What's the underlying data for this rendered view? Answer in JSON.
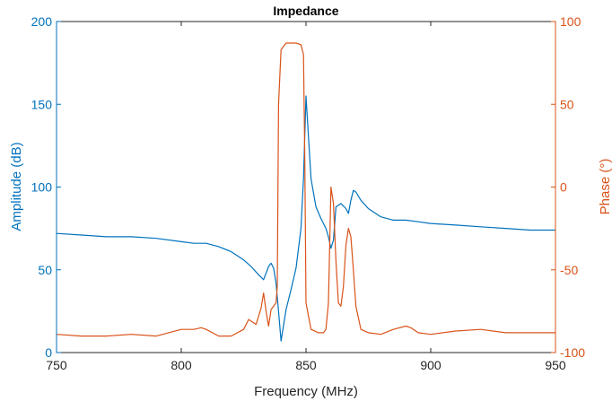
{
  "chart_data": {
    "type": "line",
    "title": "Impedance",
    "xlabel": "Frequency (MHz)",
    "ylabel_left": "Amplitude (dB)",
    "ylabel_right": "Phase (°)",
    "xlim": [
      750,
      950
    ],
    "ylim_left": [
      0,
      200
    ],
    "ylim_right": [
      -100,
      100
    ],
    "x_ticks": [
      "750",
      "800",
      "850",
      "900",
      "950"
    ],
    "y_ticks_left": [
      "0",
      "50",
      "100",
      "150",
      "200"
    ],
    "y_ticks_right": [
      "-100",
      "-50",
      "0",
      "50",
      "100"
    ],
    "grid": false,
    "colors": {
      "amplitude": "#0072BD",
      "phase": "#D95319"
    },
    "series": [
      {
        "axis": "left",
        "color": "#0072BD",
        "x": [
          750,
          760,
          770,
          780,
          790,
          800,
          805,
          810,
          815,
          820,
          825,
          828,
          831,
          833,
          835,
          836,
          837,
          838,
          839,
          840,
          842,
          844,
          846,
          848,
          849,
          850,
          852,
          854,
          856,
          858,
          859,
          860,
          861,
          862,
          864,
          866,
          867,
          868,
          869,
          870,
          872,
          875,
          880,
          885,
          890,
          895,
          900,
          910,
          920,
          930,
          940,
          950
        ],
        "y": [
          72,
          71,
          70,
          70,
          69,
          67,
          66,
          66,
          64,
          61,
          56,
          52,
          47,
          44,
          52,
          54,
          51,
          42,
          25,
          7,
          26,
          38,
          51,
          75,
          105,
          155,
          105,
          88,
          81,
          75,
          70,
          63,
          68,
          88,
          90,
          87,
          84,
          92,
          98,
          97,
          92,
          87,
          82,
          80,
          80,
          79,
          78,
          77,
          76,
          75,
          74,
          74
        ]
      },
      {
        "axis": "right",
        "color": "#D95319",
        "x": [
          750,
          760,
          770,
          780,
          790,
          800,
          805,
          808,
          810,
          815,
          820,
          825,
          827,
          830,
          832,
          833,
          834,
          835,
          836,
          838,
          838.5,
          839,
          840,
          842,
          844,
          846,
          848,
          849,
          849.5,
          850,
          852,
          855,
          857,
          858,
          859,
          860,
          861,
          862,
          863,
          864,
          865,
          866,
          867,
          868,
          869,
          870,
          872,
          875,
          880,
          885,
          890,
          892,
          895,
          900,
          910,
          920,
          930,
          940,
          950
        ],
        "y": [
          -89,
          -90,
          -90,
          -89,
          -90,
          -86,
          -86,
          -85,
          -86,
          -90,
          -90,
          -86,
          -80,
          -83,
          -73,
          -64,
          -75,
          -84,
          -74,
          -70,
          -60,
          50,
          83,
          87,
          87,
          87,
          86,
          80,
          20,
          -70,
          -86,
          -88,
          -88,
          -86,
          -70,
          0,
          -10,
          -45,
          -70,
          -72,
          -60,
          -35,
          -25,
          -30,
          -50,
          -72,
          -86,
          -88,
          -89,
          -86,
          -84,
          -85,
          -88,
          -89,
          -87,
          -86,
          -88,
          -88,
          -88
        ]
      }
    ]
  }
}
